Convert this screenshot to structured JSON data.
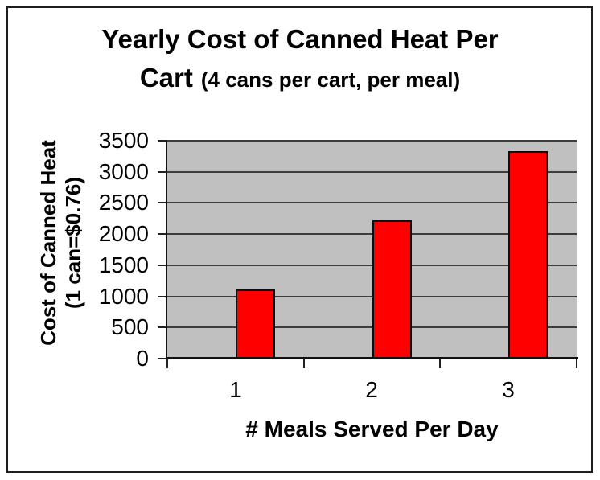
{
  "title": {
    "line1": "Yearly Cost of Canned Heat Per",
    "line2_main": "Cart",
    "line2_sub": "(4 cans per cart, per meal)"
  },
  "y_axis": {
    "label_line1": "Cost of Canned Heat",
    "label_line2": "(1 can=$0.76)",
    "ticks": [
      "3500",
      "3000",
      "2500",
      "2000",
      "1500",
      "1000",
      "500",
      "0"
    ]
  },
  "x_axis": {
    "label": "# Meals Served Per Day"
  },
  "chart_data": {
    "type": "bar",
    "categories": [
      "1",
      "2",
      "3"
    ],
    "values": [
      1109.6,
      2219.2,
      3328.8
    ],
    "title": "Yearly Cost of Canned Heat Per Cart (4 cans per cart, per meal)",
    "xlabel": "# Meals Served Per Day",
    "ylabel": "Cost of Canned Heat (1 can=$0.76)",
    "ylim": [
      0,
      3500
    ],
    "ytick_step": 500,
    "grid": true,
    "legend": false,
    "bar_color": "#FE0000",
    "bar_border_color": "#0d0d0d",
    "plot_bg_color": "#C0C0C0",
    "gridline_color": "#3c3c3c",
    "axis_color": "#111111",
    "frame_color": "#1d1d1d",
    "text_color": "#000000"
  }
}
